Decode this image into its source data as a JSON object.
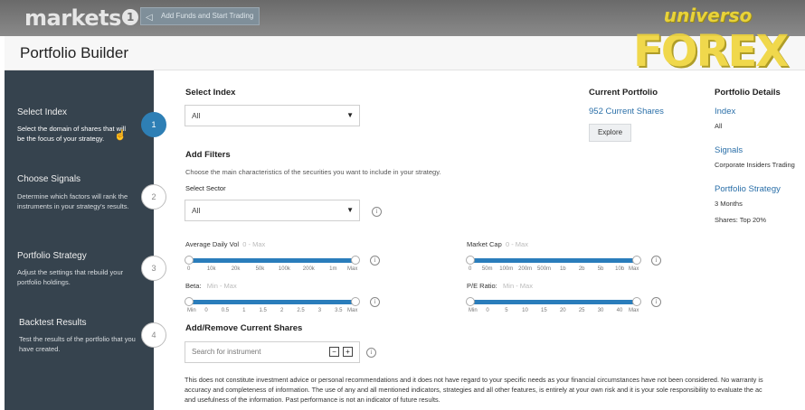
{
  "header": {
    "logo_text": "markets",
    "logo_badge": "1",
    "add_funds_label": "Add Funds and Start Trading"
  },
  "watermark": {
    "top": "universo",
    "main": "FOREX"
  },
  "page_title": "Portfolio Builder",
  "steps": [
    {
      "num": "1",
      "title": "Select Index",
      "desc": "Select the domain of shares that will be the focus of your strategy.",
      "active": true
    },
    {
      "num": "2",
      "title": "Choose Signals",
      "desc": "Determine which factors will rank the instruments in your strategy's results."
    },
    {
      "num": "3",
      "title": "Portfolio Strategy",
      "desc": "Adjust the settings that rebuild your portfolio holdings."
    },
    {
      "num": "4",
      "title": "Backtest Results",
      "desc": "Test the results of the portfolio that you have created."
    }
  ],
  "select_index": {
    "label": "Select Index",
    "value": "All"
  },
  "filters": {
    "title": "Add Filters",
    "desc": "Choose the main characteristics of the securities you want to include in your strategy.",
    "sector_label": "Select Sector",
    "sector_value": "All",
    "avg_vol": {
      "label": "Average Daily Vol",
      "hint": "0 - Max",
      "ticks": [
        "0",
        "10k",
        "20k",
        "50k",
        "100k",
        "200k",
        "1m",
        "Max"
      ]
    },
    "market_cap": {
      "label": "Market Cap",
      "hint": "0 - Max",
      "ticks": [
        "0",
        "50m",
        "100m",
        "200m",
        "500m",
        "1b",
        "2b",
        "5b",
        "10b",
        "Max"
      ]
    },
    "beta": {
      "label": "Beta:",
      "hint": "Min - Max",
      "ticks": [
        "Min",
        "0",
        "0.5",
        "1",
        "1.5",
        "2",
        "2.5",
        "3",
        "3.5",
        "Max"
      ]
    },
    "pe_ratio": {
      "label": "P/E Ratio:",
      "hint": "Min - Max",
      "ticks": [
        "Min",
        "0",
        "5",
        "10",
        "15",
        "20",
        "25",
        "30",
        "40",
        "Max"
      ]
    }
  },
  "shares": {
    "title": "Add/Remove Current Shares",
    "search_placeholder": "Search for instrument",
    "minus": "−",
    "plus": "+"
  },
  "current_portfolio": {
    "title": "Current Portfolio",
    "shares_link": "952 Current Shares",
    "explore_label": "Explore"
  },
  "details": {
    "title": "Portfolio Details",
    "index_label": "Index",
    "index_value": "All",
    "signals_label": "Signals",
    "signals_value": "Corporate Insiders Trading",
    "strategy_label": "Portfolio Strategy",
    "strategy_months": "3 Months",
    "strategy_shares": "Shares: Top 20%"
  },
  "disclaimer": [
    "This does not constitute investment advice or personal recommendations and it does not have regard to your specific needs as your financial circumstances have not been considered. No warranty is",
    "accuracy and completeness of information. The use of any and all mentioned indicators, strategies and all other features, is entirely at your own risk and it is your sole responsibility to evaluate the ac",
    "and usefulness of the information. Past performance is not an indicator of future results."
  ],
  "colors": {
    "accent": "#2a7dbb",
    "sidebar": "#36434e",
    "active_step": "#2e7fb5"
  }
}
